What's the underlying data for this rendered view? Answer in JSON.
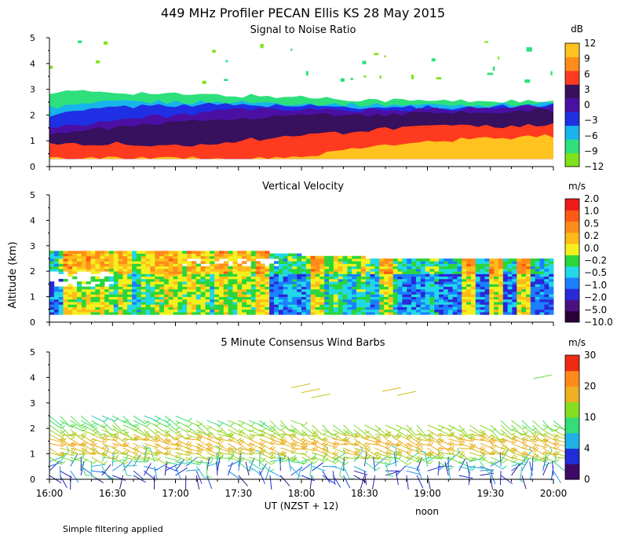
{
  "title": "449 MHz Profiler PECAN Ellis KS 28 May 2015",
  "ylabel": "Altitude (km)",
  "footer_note": "Simple filtering applied",
  "x_axis": {
    "tick_labels": [
      "16:00",
      "16:30",
      "17:00",
      "17:30",
      "18:00",
      "18:30",
      "19:00",
      "19:30",
      "20:00"
    ],
    "label": "UT  (NZST + 12)",
    "local_noon_label": "noon",
    "local_noon_at": "20:00"
  },
  "colors": {
    "snr": [
      "#7fe31a",
      "#2ee07c",
      "#18b4ec",
      "#1f2fe3",
      "#4b10a3",
      "#37105e",
      "#ff3b1f",
      "#ff8c1a",
      "#ffc21e"
    ],
    "vv": [
      "#2a0036",
      "#4a1180",
      "#2a28d8",
      "#1a80ff",
      "#22d8e8",
      "#2ad63a",
      "#f3f01e",
      "#ffbb1a",
      "#ff8c1a",
      "#ff5a14",
      "#ee1a1a"
    ],
    "wind": [
      "#3e0a66",
      "#1f2ed6",
      "#20b0e8",
      "#33dd77",
      "#86dd22",
      "#f0b020",
      "#ff8a1a",
      "#ee2a12"
    ]
  },
  "chart_data": [
    {
      "type": "heatmap",
      "title": "Signal to Noise Ratio",
      "unit": "dB",
      "x_range": [
        "16:00",
        "20:00"
      ],
      "ylim": [
        0,
        5
      ],
      "yticks": [
        0,
        1,
        2,
        3,
        4,
        5
      ],
      "colorbar_labels": [
        "12",
        "9",
        "6",
        "3",
        "0",
        "−3",
        "−6",
        "−9",
        "−12"
      ],
      "colorbar_values": [
        12,
        9,
        6,
        3,
        0,
        -3,
        -6,
        -9,
        -12
      ],
      "layers": [
        {
          "snr_db": -10,
          "base_km": 0.3,
          "top_km": [
            2.9,
            2.9,
            2.8,
            2.75,
            2.7,
            2.6,
            2.55,
            2.55,
            2.5
          ]
        },
        {
          "snr_db": -7,
          "base_km": 0.3,
          "top_km": [
            2.3,
            2.5,
            2.5,
            2.5,
            2.45,
            2.4,
            2.4,
            2.4,
            2.45
          ]
        },
        {
          "snr_db": -4,
          "base_km": 0.3,
          "top_km": [
            2.0,
            2.3,
            2.4,
            2.4,
            2.35,
            2.3,
            2.3,
            2.3,
            2.4
          ]
        },
        {
          "snr_db": -1,
          "base_km": 0.3,
          "top_km": [
            1.5,
            1.8,
            2.0,
            2.2,
            2.2,
            2.2,
            2.2,
            2.25,
            2.35
          ]
        },
        {
          "snr_db": 3,
          "base_km": 0.3,
          "top_km": [
            1.3,
            1.5,
            1.7,
            1.9,
            2.0,
            2.0,
            2.05,
            2.1,
            2.2
          ]
        },
        {
          "snr_db": 7,
          "base_km": 0.3,
          "top_km": [
            0.9,
            0.9,
            0.8,
            1.0,
            1.2,
            1.4,
            1.55,
            1.55,
            1.6
          ]
        },
        {
          "snr_db": 12,
          "base_km": 0.3,
          "top_km": [
            0.3,
            0.3,
            0.3,
            0.3,
            0.35,
            0.8,
            1.0,
            1.1,
            1.2
          ]
        }
      ]
    },
    {
      "type": "heatmap",
      "title": "Vertical Velocity",
      "unit": "m/s",
      "x_range": [
        "16:00",
        "20:00"
      ],
      "ylim": [
        0,
        5
      ],
      "yticks": [
        0,
        1,
        2,
        3,
        4,
        5
      ],
      "colorbar_labels": [
        "2.0",
        "1.0",
        "0.5",
        "0.2",
        "0.0",
        "−0.2",
        "−0.5",
        "−1.0",
        "−2.0",
        "−5.0",
        "−10.0"
      ],
      "colorbar_values": [
        2.0,
        1.0,
        0.5,
        0.2,
        0.0,
        -0.2,
        -0.5,
        -1.0,
        -2.0,
        -5.0,
        -10.0
      ],
      "coverage": {
        "base_km": 0.3,
        "top_km": [
          2.8,
          2.8,
          2.8,
          2.8,
          2.6,
          2.5,
          2.5,
          2.5,
          2.5
        ]
      }
    },
    {
      "type": "wind_barbs",
      "title": "5 Minute Consensus Wind Barbs",
      "unit": "m/s",
      "x_range": [
        "16:00",
        "20:00"
      ],
      "ylim": [
        0,
        5
      ],
      "yticks": [
        0,
        1,
        2,
        3,
        4,
        5
      ],
      "colorbar_labels": [
        "30",
        "20",
        "10",
        "4",
        "0"
      ],
      "colorbar_values": [
        30,
        20,
        10,
        4,
        0
      ],
      "profile_top_km": [
        2.5,
        2.5,
        2.5,
        2.4,
        2.3,
        2.2,
        2.2,
        2.3,
        2.4
      ],
      "speed_by_altitude": [
        {
          "altitude_km": 0.2,
          "speed_ms": 3
        },
        {
          "altitude_km": 0.6,
          "speed_ms": 8
        },
        {
          "altitude_km": 1.0,
          "speed_ms": 17
        },
        {
          "altitude_km": 1.5,
          "speed_ms": 21
        },
        {
          "altitude_km": 2.0,
          "speed_ms": 15
        },
        {
          "altitude_km": 2.5,
          "speed_ms": 10
        },
        {
          "altitude_km": 3.5,
          "speed_ms": 20
        },
        {
          "altitude_km": 4.0,
          "speed_ms": 12
        }
      ]
    }
  ]
}
